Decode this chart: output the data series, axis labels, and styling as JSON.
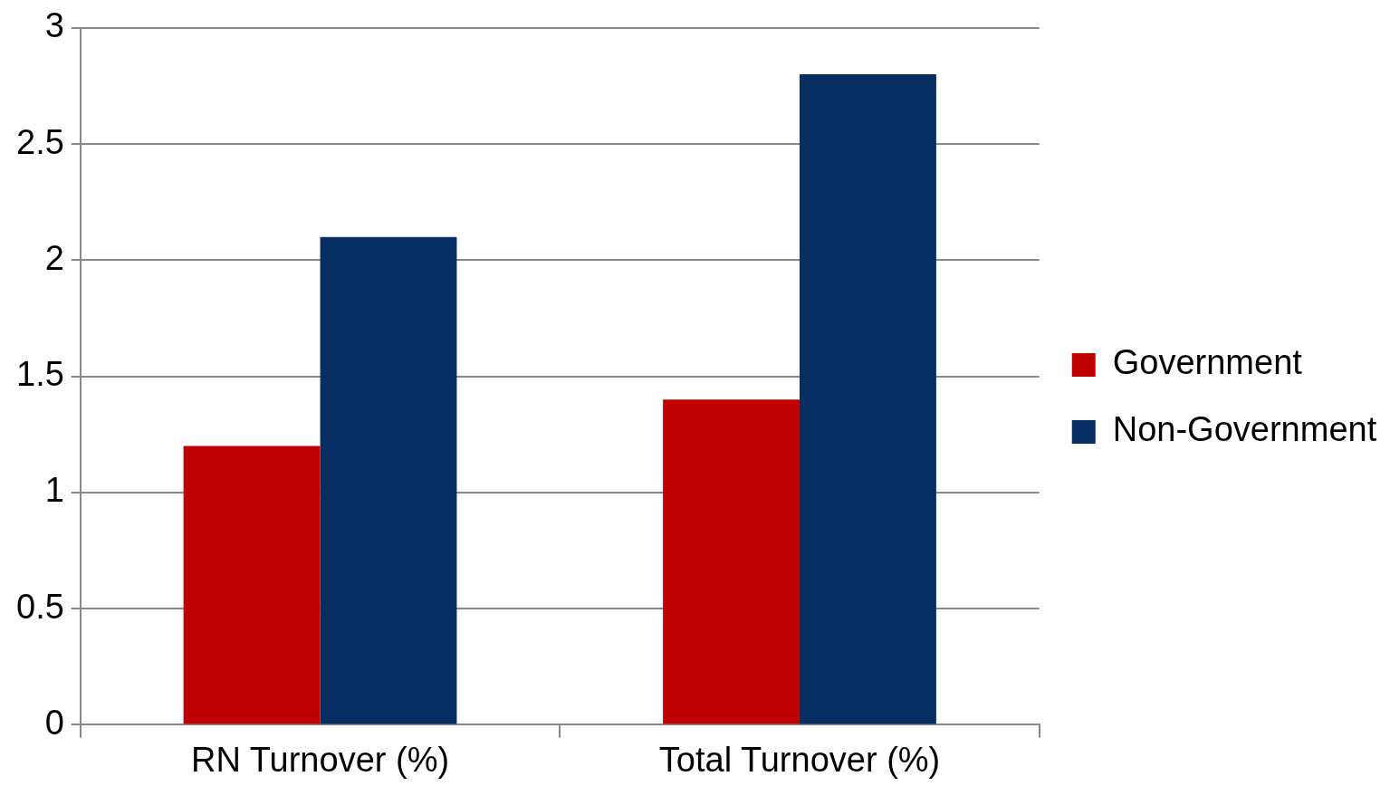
{
  "chart_data": {
    "type": "bar",
    "categories": [
      "RN Turnover (%)",
      "Total Turnover (%)"
    ],
    "series": [
      {
        "name": "Government",
        "color": "#c00000",
        "values": [
          1.2,
          1.4
        ]
      },
      {
        "name": "Non-Government",
        "color": "#072e63",
        "values": [
          2.1,
          2.8
        ]
      }
    ],
    "ylim": [
      0,
      3
    ],
    "yticks": [
      0,
      0.5,
      1,
      1.5,
      2,
      2.5,
      3
    ],
    "grid": "y",
    "legend": "right"
  }
}
